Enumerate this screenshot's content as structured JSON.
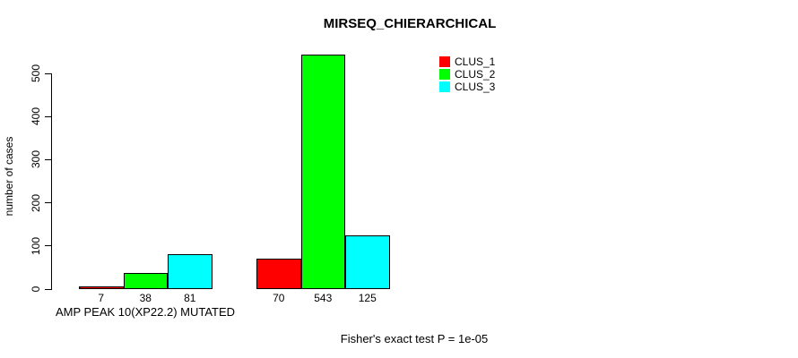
{
  "chart_data": {
    "type": "bar",
    "title": "MIRSEQ_CHIERARCHICAL",
    "ylabel": "number of cases",
    "xlabel": "",
    "ylim": [
      0,
      500
    ],
    "yticks": [
      0,
      100,
      200,
      300,
      400,
      500
    ],
    "grid": false,
    "legend_position": "top-right",
    "categories": [
      "AMP PEAK 10(XP22.2) MUTATED",
      ""
    ],
    "series": [
      {
        "name": "CLUS_1",
        "color": "#FF0000",
        "values": [
          7,
          70
        ]
      },
      {
        "name": "CLUS_2",
        "color": "#00FF00",
        "values": [
          38,
          543
        ]
      },
      {
        "name": "CLUS_3",
        "color": "#00FFFF",
        "values": [
          81,
          125
        ]
      }
    ],
    "bar_value_labels": [
      [
        7,
        38,
        81
      ],
      [
        70,
        543,
        125
      ]
    ],
    "annotation": "Fisher's exact test P = 1e-05",
    "axis_color": "#000000",
    "bar_border_color": "#000000"
  }
}
